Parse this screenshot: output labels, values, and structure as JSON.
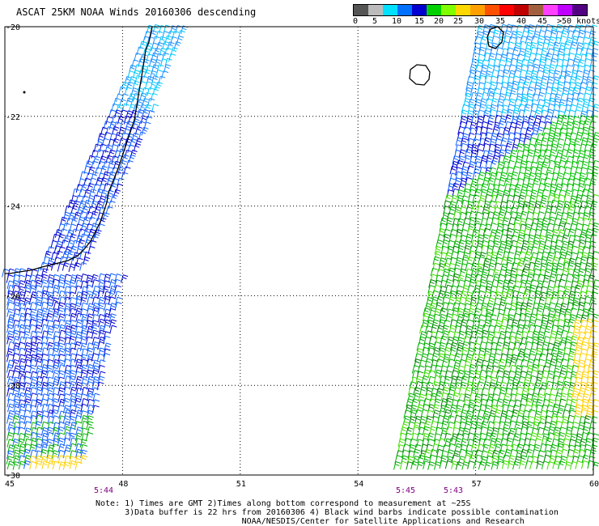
{
  "title": "ASCAT 25KM NOAA Winds 20160306 descending",
  "legend": {
    "labels": [
      "0",
      "5",
      "10",
      "15",
      "20",
      "25",
      "30",
      "35",
      "40",
      "45",
      ">50 knots"
    ],
    "colors": [
      "#555555",
      "#bbbbbb",
      "#00e0ff",
      "#0070ff",
      "#0000d0",
      "#00d000",
      "#80ff00",
      "#ffd800",
      "#ffa000",
      "#ff5000",
      "#ff0000",
      "#c00000",
      "#a06040",
      "#ff40ff",
      "#c000ff",
      "#500080"
    ]
  },
  "axes": {
    "lon_labels": [
      "45",
      "48",
      "51",
      "54",
      "57",
      "60"
    ],
    "lat_labels": [
      "-20",
      "-22",
      "-24",
      "-26",
      "-28",
      "-30"
    ]
  },
  "times": [
    "5:44",
    "5:45",
    "5:43"
  ],
  "notes": [
    "Note: 1) Times are GMT 2)Times along bottom correspond to measurement at ~25S",
    "      3)Data buffer is 22 hrs from 20160306 4) Black wind barbs indicate possible contamination",
    "                              NOAA/NESDIS/Center for Satellite Applications and Research"
  ]
}
